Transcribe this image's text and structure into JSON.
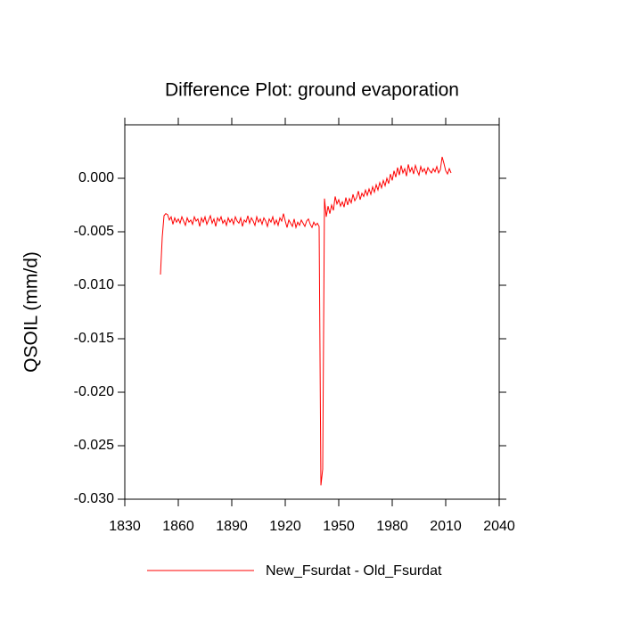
{
  "chart_data": {
    "type": "line",
    "title": "Difference Plot: ground evaporation",
    "y_label": "QSOIL  (mm/d)",
    "x": [
      1850,
      1851,
      1852,
      1853,
      1854,
      1855,
      1856,
      1857,
      1858,
      1859,
      1860,
      1861,
      1862,
      1863,
      1864,
      1865,
      1866,
      1867,
      1868,
      1869,
      1870,
      1871,
      1872,
      1873,
      1874,
      1875,
      1876,
      1877,
      1878,
      1879,
      1880,
      1881,
      1882,
      1883,
      1884,
      1885,
      1886,
      1887,
      1888,
      1889,
      1890,
      1891,
      1892,
      1893,
      1894,
      1895,
      1896,
      1897,
      1898,
      1899,
      1900,
      1901,
      1902,
      1903,
      1904,
      1905,
      1906,
      1907,
      1908,
      1909,
      1910,
      1911,
      1912,
      1913,
      1914,
      1915,
      1916,
      1917,
      1918,
      1919,
      1920,
      1921,
      1922,
      1923,
      1924,
      1925,
      1926,
      1927,
      1928,
      1929,
      1930,
      1931,
      1932,
      1933,
      1934,
      1935,
      1936,
      1937,
      1938,
      1939,
      1940,
      1941,
      1942,
      1943,
      1944,
      1945,
      1946,
      1947,
      1948,
      1949,
      1950,
      1951,
      1952,
      1953,
      1954,
      1955,
      1956,
      1957,
      1958,
      1959,
      1960,
      1961,
      1962,
      1963,
      1964,
      1965,
      1966,
      1967,
      1968,
      1969,
      1970,
      1971,
      1972,
      1973,
      1974,
      1975,
      1976,
      1977,
      1978,
      1979,
      1980,
      1981,
      1982,
      1983,
      1984,
      1985,
      1986,
      1987,
      1988,
      1989,
      1990,
      1991,
      1992,
      1993,
      1994,
      1995,
      1996,
      1997,
      1998,
      1999,
      2000,
      2001,
      2002,
      2003,
      2004,
      2005,
      2006,
      2007,
      2008,
      2009,
      2010,
      2011,
      2012,
      2013
    ],
    "series": [
      {
        "name": "New_Fsurdat - Old_Fsurdat",
        "color": "#ff0000",
        "values": [
          -0.009,
          -0.0055,
          -0.0035,
          -0.0033,
          -0.0034,
          -0.0039,
          -0.0036,
          -0.0043,
          -0.0037,
          -0.0041,
          -0.0038,
          -0.0042,
          -0.0036,
          -0.004,
          -0.0044,
          -0.0037,
          -0.0041,
          -0.0039,
          -0.0043,
          -0.0036,
          -0.004,
          -0.0038,
          -0.0045,
          -0.0037,
          -0.0041,
          -0.0036,
          -0.0043,
          -0.0039,
          -0.0035,
          -0.0042,
          -0.0038,
          -0.0045,
          -0.0037,
          -0.004,
          -0.0036,
          -0.0042,
          -0.0039,
          -0.0044,
          -0.0037,
          -0.0041,
          -0.0038,
          -0.0043,
          -0.0036,
          -0.004,
          -0.0042,
          -0.0037,
          -0.0045,
          -0.0039,
          -0.0041,
          -0.0035,
          -0.0042,
          -0.0037,
          -0.004,
          -0.0044,
          -0.0036,
          -0.0041,
          -0.0038,
          -0.0043,
          -0.0037,
          -0.004,
          -0.0045,
          -0.0038,
          -0.0041,
          -0.0036,
          -0.0043,
          -0.0039,
          -0.0044,
          -0.0037,
          -0.004,
          -0.0033,
          -0.004,
          -0.0046,
          -0.0039,
          -0.0042,
          -0.0045,
          -0.0038,
          -0.0046,
          -0.0041,
          -0.0044,
          -0.0039,
          -0.0042,
          -0.0045,
          -0.004,
          -0.0038,
          -0.0043,
          -0.0046,
          -0.0041,
          -0.0044,
          -0.0042,
          -0.0045,
          -0.0287,
          -0.0272,
          -0.0019,
          -0.0036,
          -0.0026,
          -0.0033,
          -0.0025,
          -0.003,
          -0.0017,
          -0.0024,
          -0.002,
          -0.0026,
          -0.0022,
          -0.0027,
          -0.0018,
          -0.0025,
          -0.0019,
          -0.0023,
          -0.0015,
          -0.0021,
          -0.0018,
          -0.0012,
          -0.002,
          -0.0014,
          -0.0017,
          -0.0011,
          -0.0016,
          -0.001,
          -0.0015,
          -0.0008,
          -0.0013,
          -0.0006,
          -0.0011,
          -0.0004,
          -0.0009,
          -0.0002,
          -0.0007,
          0.0,
          -0.0005,
          0.0004,
          -0.0002,
          0.0007,
          0.0001,
          0.001,
          0.0003,
          0.0012,
          0.0005,
          0.0009,
          0.0002,
          0.0013,
          0.0006,
          0.001,
          0.0004,
          0.0012,
          0.0007,
          0.0003,
          0.0011,
          0.0006,
          0.0009,
          0.0004,
          0.001,
          0.0007,
          0.0005,
          0.0009,
          0.0006,
          0.0011,
          0.0005,
          0.0008,
          0.002,
          0.0014,
          0.0007,
          0.0004,
          0.0009,
          0.0005
        ]
      }
    ],
    "xlim": [
      1830,
      2040
    ],
    "xticks": [
      1830,
      1860,
      1890,
      1920,
      1950,
      1980,
      2010,
      2040
    ],
    "ylim": [
      -0.03,
      0.005
    ],
    "yticks": [
      {
        "value": -0.03,
        "label": "-0.030"
      },
      {
        "value": -0.025,
        "label": "-0.025"
      },
      {
        "value": -0.02,
        "label": "-0.020"
      },
      {
        "value": -0.015,
        "label": "-0.015"
      },
      {
        "value": -0.01,
        "label": "-0.010"
      },
      {
        "value": -0.005,
        "label": "-0.005"
      },
      {
        "value": 0.0,
        "label": "0.000"
      }
    ],
    "grid": false,
    "legend": "bottom"
  }
}
